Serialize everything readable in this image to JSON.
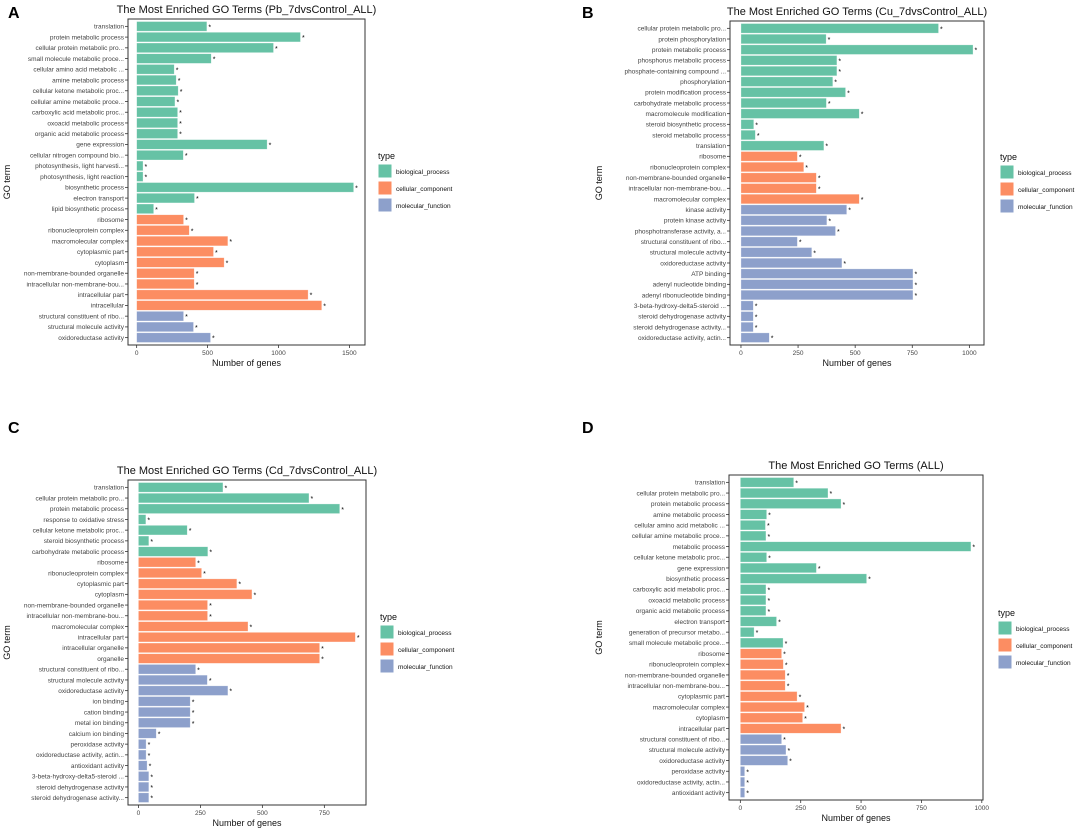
{
  "significance_marker": "*",
  "legend": {
    "title": "type",
    "entries": [
      "biological_process",
      "cellular_component",
      "molecular_function"
    ],
    "colors": [
      "#66c2a5",
      "#fc8d62",
      "#8da0cb"
    ]
  },
  "chart_data": [
    {
      "panel": "A",
      "type": "bar",
      "orientation": "horizontal",
      "title": "The Most Enriched GO Terms (Pb_7dvsControl_ALL)",
      "xlabel": "Number of genes",
      "ylabel": "GO term",
      "xlim": [
        -61,
        1610
      ],
      "ticks": [
        0,
        500,
        1000,
        1500
      ],
      "group_counts": [
        18,
        9,
        3
      ],
      "categories": [
        "translation",
        "protein metabolic process",
        "cellular protein metabolic pro...",
        "small molecule metabolic proce...",
        "cellular amino acid metabolic ...",
        "amine metabolic process",
        "cellular ketone metabolic proc...",
        "cellular amine metabolic proce...",
        "carboxylic acid metabolic proc...",
        "oxoacid metabolic process",
        "organic acid metabolic process",
        "gene expression",
        "cellular nitrogen compound bio...",
        "photosynthesis, light harvesti...",
        "photosynthesis, light reaction",
        "biosynthetic process",
        "electron transport",
        "lipid biosynthetic process",
        "ribosome",
        "ribonucleoprotein complex",
        "macromolecular complex",
        "cytoplasmic part",
        "cytoplasm",
        "non-membrane-bounded organelle",
        "intracellular non-membrane-bou...",
        "intracellular part",
        "intracellular",
        "structural constituent of ribo...",
        "structural molecule activity",
        "oxidoreductase activity"
      ],
      "values": [
        495,
        1155,
        965,
        526,
        265,
        279,
        293,
        270,
        289,
        289,
        289,
        920,
        329,
        45,
        45,
        1530,
        408,
        120,
        331,
        371,
        643,
        542,
        617,
        406,
        406,
        1209,
        1305,
        331,
        401,
        521
      ]
    },
    {
      "panel": "B",
      "type": "bar",
      "orientation": "horizontal",
      "title": "The Most Enriched GO Terms (Cu_7dvsControl_ALL)",
      "xlabel": "Number of genes",
      "ylabel": "GO term",
      "xlim": [
        -48,
        1064
      ],
      "ticks": [
        0,
        250,
        500,
        750,
        1000
      ],
      "group_counts": [
        12,
        5,
        13
      ],
      "categories": [
        "cellular protein metabolic pro...",
        "protein phosphorylation",
        "protein metabolic process",
        "phosphorus metabolic process",
        "phosphate-containing compound ...",
        "phosphorylation",
        "protein modification process",
        "carbohydrate metabolic process",
        "macromolecule modification",
        "steroid biosynthetic process",
        "steroid metabolic process",
        "translation",
        "ribosome",
        "ribonucleoprotein complex",
        "non-membrane-bounded organelle",
        "intracellular non-membrane-bou...",
        "macromolecular complex",
        "kinase activity",
        "protein kinase activity",
        "phosphotransferase activity, a...",
        "structural constituent of ribo...",
        "structural molecule activity",
        "oxidoreductase activity",
        "ATP binding",
        "adenyl nucleotide binding",
        "adenyl ribonucleotide binding",
        "3-beta-hydroxy-delta5-steroid ...",
        "steroid dehydrogenase activity",
        "steroid dehydrogenase activity...",
        "oxidoreductase activity, actin..."
      ],
      "values": [
        865,
        373,
        1016,
        420,
        420,
        402,
        458,
        374,
        518,
        56,
        63,
        363,
        247,
        275,
        330,
        330,
        518,
        463,
        376,
        414,
        247,
        310,
        442,
        753,
        753,
        753,
        54,
        54,
        54,
        124
      ]
    },
    {
      "panel": "C",
      "type": "bar",
      "orientation": "horizontal",
      "title": "The Most Enriched GO Terms (Cd_7dvsControl_ALL)",
      "xlabel": "Number of genes",
      "ylabel": "GO term",
      "xlim": [
        -42,
        918
      ],
      "ticks": [
        0,
        250,
        500,
        750
      ],
      "group_counts": [
        7,
        10,
        13
      ],
      "categories": [
        "translation",
        "cellular protein metabolic pro...",
        "protein metabolic process",
        "response to oxidative stress",
        "cellular ketone metabolic proc...",
        "steroid biosynthetic process",
        "carbohydrate metabolic process",
        "ribosome",
        "ribonucleoprotein complex",
        "cytoplasmic part",
        "cytoplasm",
        "non-membrane-bounded organelle",
        "intracellular non-membrane-bou...",
        "macromolecular complex",
        "intracellular part",
        "intracellular organelle",
        "organelle",
        "structural constituent of ribo...",
        "structural molecule activity",
        "oxidoreductase activity",
        "ion binding",
        "cation binding",
        "metal ion binding",
        "calcium ion binding",
        "peroxidase activity",
        "oxidoreductase activity, actin...",
        "antioxidant activity",
        "3-beta-hydroxy-delta5-steroid ...",
        "steroid dehydrogenase activity",
        "steroid dehydrogenase activity..."
      ],
      "values": [
        341,
        688,
        812,
        30,
        197,
        42,
        280,
        231,
        255,
        397,
        458,
        279,
        279,
        442,
        875,
        731,
        731,
        231,
        278,
        361,
        209,
        209,
        209,
        72,
        31,
        31,
        35,
        42,
        42,
        42
      ]
    },
    {
      "panel": "D",
      "type": "bar",
      "orientation": "horizontal",
      "title": "The Most Enriched GO Terms (ALL)",
      "xlabel": "Number of genes",
      "ylabel": "GO term",
      "xlim": [
        -47,
        1005
      ],
      "ticks": [
        0,
        250,
        500,
        750,
        1000
      ],
      "group_counts": [
        16,
        8,
        6
      ],
      "categories": [
        "translation",
        "cellular protein metabolic pro...",
        "protein metabolic process",
        "amine metabolic process",
        "cellular amino acid metabolic ...",
        "cellular amine metabolic proce...",
        "metabolic process",
        "cellular ketone metabolic proc...",
        "gene expression",
        "biosynthetic process",
        "carboxylic acid metabolic proc...",
        "oxoacid metabolic process",
        "organic acid metabolic process",
        "electron transport",
        "generation of precursor metabo...",
        "small molecule metabolic proce...",
        "ribosome",
        "ribonucleoprotein complex",
        "non-membrane-bounded organelle",
        "intracellular non-membrane-bou...",
        "cytoplasmic part",
        "macromolecular complex",
        "cytoplasm",
        "intracellular part",
        "structural constituent of ribo...",
        "structural molecule activity",
        "oxidoreductase activity",
        "peroxidase activity",
        "oxidoreductase activity, actin...",
        "antioxidant activity"
      ],
      "values": [
        221,
        363,
        417,
        109,
        104,
        106,
        955,
        109,
        315,
        523,
        106,
        106,
        106,
        150,
        57,
        177,
        171,
        178,
        186,
        186,
        235,
        266,
        258,
        417,
        171,
        189,
        196,
        18,
        18,
        18
      ]
    }
  ]
}
